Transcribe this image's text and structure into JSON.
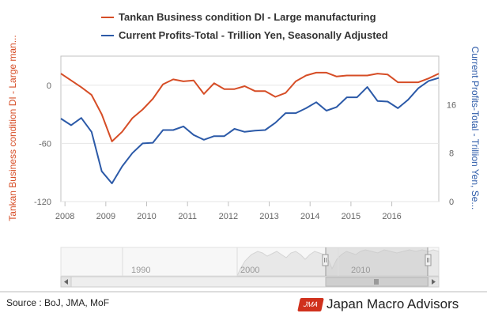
{
  "chart_data": {
    "type": "line",
    "legend_position": "top-center",
    "x_ticks": [
      "2008",
      "2009",
      "2010",
      "2011",
      "2012",
      "2013",
      "2014",
      "2015",
      "2016"
    ],
    "x_range": [
      2007.9,
      2017.15
    ],
    "y_left": {
      "title": "Tankan Business condition DI - Large man...",
      "ticks": [
        "0",
        "-60",
        "-120"
      ],
      "tick_values": [
        0,
        -60,
        -120
      ],
      "range": [
        -120,
        30
      ]
    },
    "y_right": {
      "title": "Current Profits-Total - Trillion Yen, Se...",
      "ticks": [
        "16",
        "8",
        "0"
      ],
      "tick_values": [
        16,
        8,
        0
      ],
      "range": [
        0,
        24
      ]
    },
    "series": [
      {
        "name": "Tankan Business condition DI - Large manufacturing",
        "axis": "left",
        "color": "#d64d26",
        "x": [
          2007.9,
          2008.15,
          2008.4,
          2008.65,
          2008.9,
          2009.15,
          2009.4,
          2009.65,
          2009.9,
          2010.15,
          2010.4,
          2010.65,
          2010.9,
          2011.15,
          2011.4,
          2011.65,
          2011.9,
          2012.15,
          2012.4,
          2012.65,
          2012.9,
          2013.15,
          2013.4,
          2013.65,
          2013.9,
          2014.15,
          2014.4,
          2014.65,
          2014.9,
          2015.15,
          2015.4,
          2015.65,
          2015.9,
          2016.15,
          2016.4,
          2016.65,
          2016.9,
          2017.15
        ],
        "values": [
          12,
          5,
          -2,
          -10,
          -30,
          -58,
          -48,
          -34,
          -25,
          -14,
          1,
          6,
          4,
          5,
          -9,
          2,
          -4,
          -4,
          -1,
          -6,
          -6,
          -12,
          -8,
          4,
          10,
          13,
          13,
          9,
          10,
          10,
          10,
          12,
          11,
          3,
          3,
          3,
          7,
          12
        ]
      },
      {
        "name": "Current Profits-Total - Trillion Yen, Seasonally Adjusted",
        "axis": "right",
        "color": "#2c5aa8",
        "x": [
          2007.9,
          2008.15,
          2008.4,
          2008.65,
          2008.9,
          2009.15,
          2009.4,
          2009.65,
          2009.9,
          2010.15,
          2010.4,
          2010.65,
          2010.9,
          2011.15,
          2011.4,
          2011.65,
          2011.9,
          2012.15,
          2012.4,
          2012.65,
          2012.9,
          2013.15,
          2013.4,
          2013.65,
          2013.9,
          2014.15,
          2014.4,
          2014.65,
          2014.9,
          2015.15,
          2015.4,
          2015.65,
          2015.9,
          2016.15,
          2016.4,
          2016.65,
          2016.9,
          2017.15
        ],
        "values": [
          13.7,
          12.6,
          13.8,
          11.5,
          5.0,
          3.0,
          5.8,
          8.0,
          9.6,
          9.7,
          11.8,
          11.8,
          12.4,
          11.0,
          10.2,
          10.8,
          10.8,
          12.0,
          11.5,
          11.7,
          11.8,
          13.0,
          14.6,
          14.6,
          15.4,
          16.4,
          15.0,
          15.6,
          17.2,
          17.2,
          18.9,
          16.6,
          16.5,
          15.4,
          16.8,
          18.7,
          19.9,
          20.4
        ]
      }
    ],
    "navigator": {
      "labels": [
        "1990",
        "2000",
        "2010"
      ]
    }
  },
  "footer": {
    "source": "Source : BoJ, JMA, MoF",
    "brand_logo": "JMA",
    "brand_name": "Japan Macro Advisors"
  }
}
